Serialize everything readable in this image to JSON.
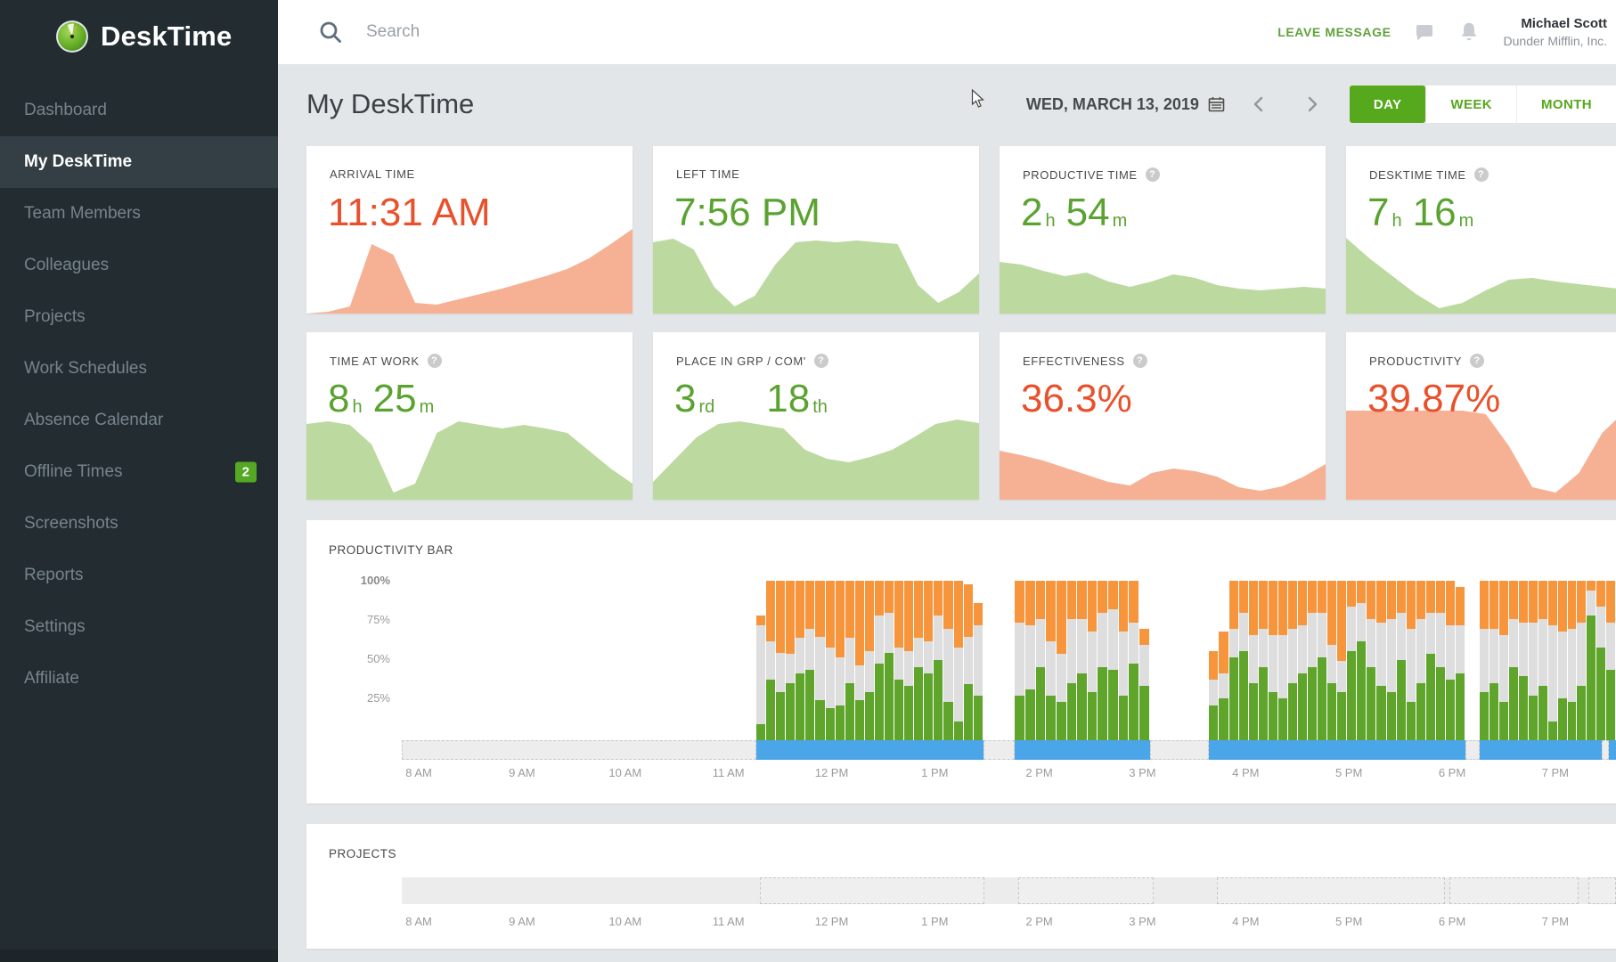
{
  "sidebar": {
    "logo_text": "DeskTime",
    "items": [
      {
        "label": "Dashboard",
        "active": false
      },
      {
        "label": "My DeskTime",
        "active": true
      },
      {
        "label": "Team Members",
        "active": false
      },
      {
        "label": "Colleagues",
        "active": false
      },
      {
        "label": "Projects",
        "active": false
      },
      {
        "label": "Work Schedules",
        "active": false
      },
      {
        "label": "Absence Calendar",
        "active": false
      },
      {
        "label": "Offline Times",
        "active": false,
        "badge": "2"
      },
      {
        "label": "Screenshots",
        "active": false
      },
      {
        "label": "Reports",
        "active": false
      },
      {
        "label": "Settings",
        "active": false
      },
      {
        "label": "Affiliate",
        "active": false
      }
    ]
  },
  "topbar": {
    "search_placeholder": "Search",
    "leave_message_label": "LEAVE MESSAGE",
    "user_name": "Michael Scott",
    "user_company": "Dunder Mifflin, Inc."
  },
  "header": {
    "title": "My DeskTime",
    "date_label": "WED, MARCH 13, 2019",
    "range_buttons": [
      {
        "label": "DAY",
        "active": true
      },
      {
        "label": "WEEK",
        "active": false
      },
      {
        "label": "MONTH",
        "active": false
      }
    ]
  },
  "cards": [
    {
      "id": "arrival-time",
      "label": "ARRIVAL TIME",
      "help": false,
      "color": "orange",
      "value_parts": [
        {
          "t": "11:31 AM"
        }
      ]
    },
    {
      "id": "left-time",
      "label": "LEFT TIME",
      "help": false,
      "color": "green",
      "value_parts": [
        {
          "t": "7:56 PM"
        }
      ]
    },
    {
      "id": "productive-time",
      "label": "PRODUCTIVE TIME",
      "help": true,
      "color": "green",
      "value_parts": [
        {
          "t": "2",
          "s": "h"
        },
        {
          "t": "54",
          "s": "m"
        }
      ]
    },
    {
      "id": "desktime-time",
      "label": "DESKTIME TIME",
      "help": true,
      "color": "green",
      "value_parts": [
        {
          "t": "7",
          "s": "h"
        },
        {
          "t": "16",
          "s": "m"
        }
      ]
    },
    {
      "id": "time-at-work",
      "label": "TIME AT WORK",
      "help": true,
      "color": "green",
      "value_parts": [
        {
          "t": "8",
          "s": "h"
        },
        {
          "t": "25",
          "s": "m"
        }
      ]
    },
    {
      "id": "place-in-group",
      "label": "PLACE IN GRP / COM'",
      "help": true,
      "color": "green",
      "value_parts": [
        {
          "t": "3",
          "s": "rd"
        },
        {
          "t": "18",
          "s": "th",
          "wide_gap": true
        }
      ]
    },
    {
      "id": "effectiveness",
      "label": "EFFECTIVENESS",
      "help": true,
      "color": "orange",
      "value_parts": [
        {
          "t": "36.3%"
        }
      ]
    },
    {
      "id": "productivity",
      "label": "PRODUCTIVITY",
      "help": true,
      "color": "orange",
      "value_parts": [
        {
          "t": "39.87%"
        }
      ]
    }
  ],
  "productivity": {
    "title": "PRODUCTIVITY BAR",
    "y_labels": [
      "100%",
      "75%",
      "50%",
      "25%"
    ],
    "x_labels": [
      "8 AM",
      "9 AM",
      "10 AM",
      "11 AM",
      "12 PM",
      "1 PM",
      "2 PM",
      "3 PM",
      "4 PM",
      "5 PM",
      "6 PM",
      "7 PM"
    ],
    "x_positions_pct": [
      1.4,
      9.9,
      18.4,
      26.9,
      35.4,
      43.9,
      52.5,
      61.0,
      69.5,
      78.0,
      86.5,
      95.0
    ]
  },
  "projects": {
    "title": "PROJECTS"
  },
  "colors": {
    "accent_green": "#5aa331",
    "accent_orange": "#e8512b",
    "area_green": "#bcd9a0",
    "area_salmon": "#f6b093",
    "bar_green": "#5fa52c",
    "bar_neutral": "#dedede",
    "bar_orange": "#f7953d",
    "timeline_blue": "#4ba5e9",
    "badge_green": "#54a823",
    "day_button_green": "#56a81c",
    "sidebar_bg": "#232c31"
  },
  "chart_data": {
    "card_trends_pct": {
      "arrival-time": [
        0,
        2,
        8,
        78,
        66,
        12,
        10,
        16,
        22,
        28,
        35,
        42,
        50,
        62,
        78,
        95
      ],
      "left-time": [
        80,
        84,
        72,
        30,
        8,
        20,
        55,
        80,
        82,
        80,
        82,
        80,
        78,
        32,
        12,
        24,
        45
      ],
      "productive-time": [
        58,
        55,
        48,
        42,
        46,
        36,
        30,
        36,
        44,
        40,
        32,
        28,
        26,
        28,
        30,
        28
      ],
      "desktime-time": [
        85,
        62,
        42,
        22,
        6,
        12,
        26,
        38,
        40,
        36,
        33,
        30,
        27,
        31,
        36
      ],
      "time-at-work": [
        85,
        88,
        84,
        62,
        8,
        18,
        75,
        88,
        84,
        80,
        84,
        80,
        75,
        55,
        35,
        18
      ],
      "place-in-group": [
        20,
        45,
        70,
        85,
        88,
        84,
        80,
        56,
        46,
        42,
        48,
        56,
        70,
        85,
        90,
        86
      ],
      "effectiveness": [
        55,
        50,
        44,
        36,
        28,
        20,
        16,
        30,
        35,
        32,
        26,
        14,
        10,
        15,
        26,
        40
      ],
      "productivity": [
        100,
        100,
        100,
        100,
        100,
        100,
        96,
        60,
        14,
        8,
        30,
        75,
        100,
        100,
        100
      ]
    },
    "productivity_bar": {
      "type": "bar",
      "stacked": true,
      "ylim": [
        0,
        100
      ],
      "segments_bottom_to_top": [
        "productive",
        "neutral",
        "unproductive"
      ],
      "groups": [
        {
          "left_pct": 29.2,
          "width_pct": 18.7,
          "bars": [
            [
              10,
              62,
              6
            ],
            [
              38,
              24,
              38
            ],
            [
              30,
              25,
              45
            ],
            [
              36,
              18,
              46
            ],
            [
              42,
              22,
              36
            ],
            [
              44,
              26,
              30
            ],
            [
              25,
              40,
              35
            ],
            [
              20,
              38,
              42
            ],
            [
              22,
              30,
              48
            ],
            [
              36,
              28,
              36
            ],
            [
              25,
              22,
              53
            ],
            [
              30,
              26,
              44
            ],
            [
              48,
              30,
              22
            ],
            [
              55,
              25,
              20
            ],
            [
              38,
              20,
              42
            ],
            [
              34,
              22,
              44
            ],
            [
              46,
              18,
              36
            ],
            [
              42,
              20,
              38
            ],
            [
              50,
              28,
              22
            ],
            [
              24,
              46,
              30
            ],
            [
              12,
              46,
              42
            ],
            [
              35,
              30,
              33
            ],
            [
              28,
              44,
              14
            ]
          ]
        },
        {
          "left_pct": 50.5,
          "width_pct": 11.1,
          "bars": [
            [
              28,
              46,
              26
            ],
            [
              32,
              40,
              28
            ],
            [
              46,
              30,
              24
            ],
            [
              28,
              34,
              38
            ],
            [
              24,
              30,
              46
            ],
            [
              36,
              40,
              24
            ],
            [
              42,
              34,
              24
            ],
            [
              30,
              38,
              32
            ],
            [
              46,
              34,
              20
            ],
            [
              44,
              38,
              18
            ],
            [
              28,
              40,
              32
            ],
            [
              48,
              26,
              26
            ],
            [
              34,
              26,
              10
            ]
          ]
        },
        {
          "left_pct": 66.5,
          "width_pct": 21.1,
          "bars": [
            [
              22,
              16,
              18
            ],
            [
              26,
              16,
              26
            ],
            [
              52,
              18,
              30
            ],
            [
              56,
              24,
              20
            ],
            [
              36,
              30,
              34
            ],
            [
              46,
              24,
              30
            ],
            [
              30,
              36,
              34
            ],
            [
              26,
              40,
              34
            ],
            [
              36,
              34,
              30
            ],
            [
              42,
              30,
              28
            ],
            [
              46,
              34,
              20
            ],
            [
              52,
              28,
              20
            ],
            [
              36,
              24,
              40
            ],
            [
              30,
              20,
              50
            ],
            [
              56,
              28,
              16
            ],
            [
              62,
              24,
              14
            ],
            [
              46,
              30,
              24
            ],
            [
              34,
              40,
              26
            ],
            [
              30,
              46,
              24
            ],
            [
              50,
              30,
              20
            ],
            [
              24,
              46,
              30
            ],
            [
              36,
              40,
              24
            ],
            [
              54,
              26,
              20
            ],
            [
              46,
              34,
              20
            ],
            [
              38,
              34,
              28
            ],
            [
              42,
              30,
              24
            ]
          ]
        },
        {
          "left_pct": 88.8,
          "width_pct": 11.2,
          "bars": [
            [
              30,
              40,
              30
            ],
            [
              36,
              34,
              30
            ],
            [
              24,
              42,
              34
            ],
            [
              46,
              30,
              24
            ],
            [
              40,
              34,
              26
            ],
            [
              28,
              46,
              26
            ],
            [
              34,
              42,
              24
            ],
            [
              12,
              60,
              28
            ],
            [
              26,
              42,
              32
            ],
            [
              24,
              46,
              30
            ],
            [
              34,
              40,
              26
            ],
            [
              78,
              16,
              6
            ],
            [
              58,
              26,
              16
            ],
            [
              44,
              30,
              26
            ]
          ]
        }
      ],
      "online_timeline_segments": [
        {
          "type": "offline",
          "left_pct": 0,
          "width_pct": 29.2
        },
        {
          "type": "online",
          "left_pct": 29.2,
          "width_pct": 18.7
        },
        {
          "type": "offline",
          "left_pct": 47.9,
          "width_pct": 2.6
        },
        {
          "type": "online",
          "left_pct": 50.5,
          "width_pct": 11.1
        },
        {
          "type": "offline",
          "left_pct": 61.6,
          "width_pct": 4.9
        },
        {
          "type": "online",
          "left_pct": 66.5,
          "width_pct": 21.1
        },
        {
          "type": "offline",
          "left_pct": 87.6,
          "width_pct": 1.2
        },
        {
          "type": "online",
          "left_pct": 88.8,
          "width_pct": 10.0
        },
        {
          "type": "offline",
          "left_pct": 98.8,
          "width_pct": 0.6
        },
        {
          "type": "online",
          "left_pct": 99.4,
          "width_pct": 0.6
        }
      ]
    },
    "projects_timeline": {
      "type": "timeline",
      "tracked_boxes_pct": [
        {
          "left_pct": 29.5,
          "width_pct": 18.5
        },
        {
          "left_pct": 50.8,
          "width_pct": 11.1
        },
        {
          "left_pct": 67.1,
          "width_pct": 18.8
        },
        {
          "left_pct": 86.3,
          "width_pct": 10.6
        },
        {
          "left_pct": 97.7,
          "width_pct": 2.3
        }
      ]
    }
  }
}
